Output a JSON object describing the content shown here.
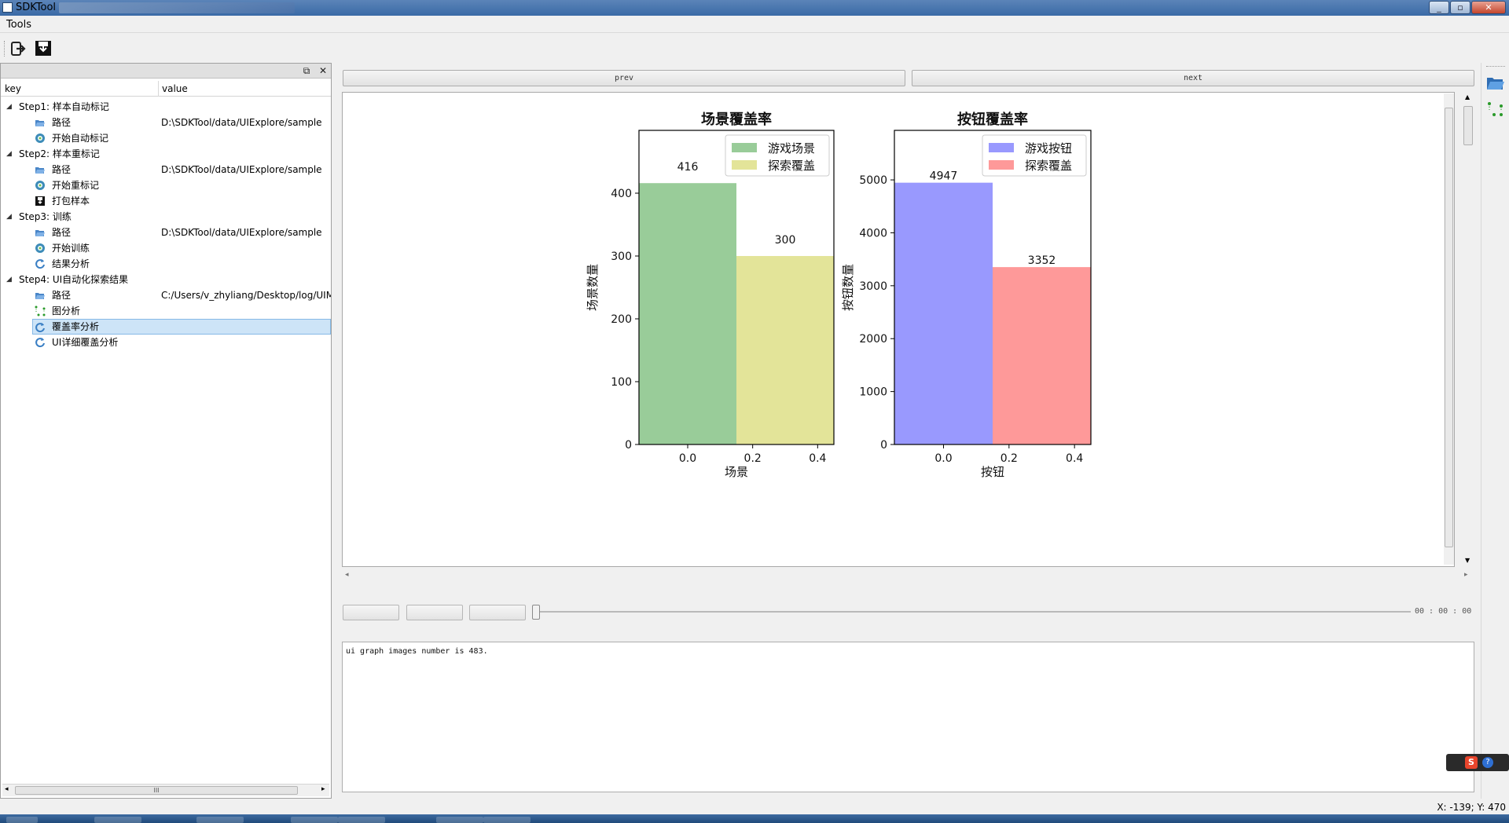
{
  "window": {
    "title": "SDKTool",
    "min": "_",
    "max": "▫",
    "close": "✕"
  },
  "menubar": {
    "tools": "Tools"
  },
  "toolbar": {
    "icons": [
      "exit-icon",
      "save-icon"
    ]
  },
  "dock": {
    "float_btn": "⧉",
    "close_btn": "✕",
    "col_key": "key",
    "col_value": "value",
    "rows": [
      {
        "key": "Step1: 样本自动标记",
        "value": ""
      },
      {
        "key": "路径",
        "value": "D:\\SDKTool/data/UIExplore/sample"
      },
      {
        "key": "开始自动标记",
        "value": ""
      },
      {
        "key": "Step2: 样本重标记",
        "value": ""
      },
      {
        "key": "路径",
        "value": "D:\\SDKTool/data/UIExplore/sample"
      },
      {
        "key": "开始重标记",
        "value": ""
      },
      {
        "key": "打包样本",
        "value": ""
      },
      {
        "key": "Step3: 训练",
        "value": ""
      },
      {
        "key": "路径",
        "value": "D:\\SDKTool/data/UIExplore/sample"
      },
      {
        "key": "开始训练",
        "value": ""
      },
      {
        "key": "结果分析",
        "value": ""
      },
      {
        "key": "Step4: UI自动化探索结果",
        "value": ""
      },
      {
        "key": "路径",
        "value": "C:/Users/v_zhyliang/Desktop/log/UIM"
      },
      {
        "key": "图分析",
        "value": ""
      },
      {
        "key": "覆盖率分析",
        "value": ""
      },
      {
        "key": "UI详细覆盖分析",
        "value": ""
      }
    ],
    "hscroll_grip": "III"
  },
  "main": {
    "prev_label": "prev",
    "next_label": "next",
    "time": "00 : 00 : 00",
    "log": "ui graph images number is 483."
  },
  "status": {
    "coords": "X: -139; Y: 470"
  },
  "colors": {
    "green": "#99cc99",
    "yellow": "#e3e499",
    "blue": "#9999fe",
    "red": "#fe9999",
    "selection": "#cde4f7"
  },
  "chart_data": [
    {
      "type": "bar",
      "title": "场景覆盖率",
      "xlabel": "场景",
      "ylabel": "场景数量",
      "x_ticks": [
        "0.0",
        "0.2",
        "0.4"
      ],
      "y_ticks": [
        "0",
        "100",
        "200",
        "300",
        "400"
      ],
      "xlim": [
        -0.15,
        0.45
      ],
      "ylim": [
        0,
        500
      ],
      "legend_position": "top-right",
      "series": [
        {
          "name": "游戏场景",
          "x": 0.0,
          "value": 416,
          "color": "#99cc99"
        },
        {
          "name": "探索覆盖",
          "x": 0.3,
          "value": 300,
          "color": "#e3e499"
        }
      ],
      "bar_width": 0.3,
      "data_labels": [
        "416",
        "300"
      ]
    },
    {
      "type": "bar",
      "title": "按钮覆盖率",
      "xlabel": "按钮",
      "ylabel": "按钮数量",
      "x_ticks": [
        "0.0",
        "0.2",
        "0.4"
      ],
      "y_ticks": [
        "0",
        "1000",
        "2000",
        "3000",
        "4000",
        "5000"
      ],
      "xlim": [
        -0.15,
        0.45
      ],
      "ylim": [
        0,
        5936
      ],
      "legend_position": "top-right",
      "series": [
        {
          "name": "游戏按钮",
          "x": 0.0,
          "value": 4947,
          "color": "#9999fe"
        },
        {
          "name": "探索覆盖",
          "x": 0.3,
          "value": 3352,
          "color": "#fe9999"
        }
      ],
      "bar_width": 0.3,
      "data_labels": [
        "4947",
        "3352"
      ]
    }
  ]
}
